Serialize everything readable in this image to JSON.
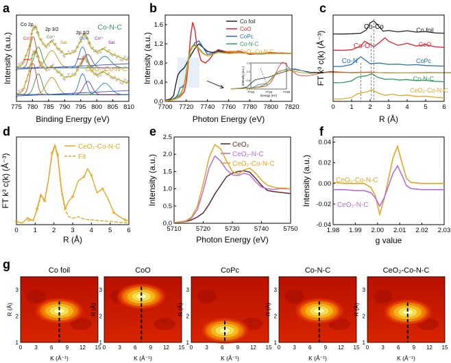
{
  "panel_letters": [
    "a",
    "b",
    "c",
    "d",
    "e",
    "f",
    "g"
  ],
  "colors": {
    "co_foil": "#222222",
    "coo": "#e0202a",
    "copc": "#1f6fb4",
    "conc": "#2e9a5b",
    "ceconc": "#e7a51e",
    "ceo2": "#5a2a2a",
    "cenc": "#b56be0",
    "fit": "#e7a51e"
  },
  "chart_data": [
    {
      "id": "a",
      "type": "line",
      "xlabel": "Binding Energy (eV)",
      "ylabel": "Intensity (a.u.)",
      "xlim": [
        775,
        810
      ],
      "xticks": [
        "775",
        "780",
        "785",
        "790",
        "795",
        "800",
        "805",
        "810"
      ],
      "labels": {
        "top": "Co-N-C",
        "bottom": "CeO₂-Co-N-C",
        "co2p": "Co 2p",
        "p32": "2p 3/2",
        "p12": "2p 1/2",
        "co3": "Co³⁺",
        "co2": "Co²⁺",
        "sat": "Sat.",
        "co3b": "Co³⁺",
        "co2b": "Co²⁺",
        "satb": "Sat."
      },
      "series": [
        {
          "name": "Co-N-C",
          "x": [
            775,
            777,
            779,
            780,
            781,
            782,
            784,
            786,
            788,
            790,
            793,
            795,
            796,
            797,
            798,
            800,
            802,
            805,
            808,
            810
          ],
          "y": [
            0.3,
            0.34,
            0.52,
            0.7,
            0.74,
            0.62,
            0.52,
            0.58,
            0.5,
            0.44,
            0.46,
            0.58,
            0.66,
            0.62,
            0.52,
            0.46,
            0.5,
            0.44,
            0.4,
            0.38
          ]
        },
        {
          "name": "CeO₂-Co-N-C",
          "x": [
            775,
            777,
            779,
            780,
            781,
            782,
            784,
            786,
            788,
            790,
            793,
            795,
            796,
            797,
            798,
            800,
            802,
            805,
            808,
            810
          ],
          "y": [
            0.02,
            0.06,
            0.26,
            0.44,
            0.48,
            0.38,
            0.28,
            0.32,
            0.26,
            0.2,
            0.22,
            0.34,
            0.42,
            0.38,
            0.28,
            0.22,
            0.26,
            0.2,
            0.16,
            0.14
          ]
        }
      ]
    },
    {
      "id": "b",
      "type": "line",
      "xlabel": "Photon Energy (eV)",
      "ylabel": "Intensity (a.u.)",
      "xlim": [
        7700,
        7820
      ],
      "ylim": [
        0,
        1.8
      ],
      "xticks": [
        "7700",
        "7720",
        "7740",
        "7760",
        "7780",
        "7800",
        "7820"
      ],
      "yticks": [
        "0.0",
        "0.4",
        "0.8",
        "1.2",
        "1.6"
      ],
      "inset": {
        "xlabel": "Energy (eV)",
        "ylabel": "Intensity (a.u.)",
        "xticks": [
          "7710",
          "7719",
          "7728"
        ],
        "yticks": [
          "0.0",
          "0.5",
          "1.0",
          "1.5"
        ]
      },
      "series": [
        {
          "name": "Co foil",
          "x": [
            7700,
            7705,
            7708,
            7710,
            7712,
            7714,
            7716,
            7718,
            7720,
            7724,
            7728,
            7732,
            7736,
            7740,
            7745,
            7750,
            7760,
            7770,
            7780,
            7790,
            7800,
            7810,
            7820
          ],
          "y": [
            0.02,
            0.05,
            0.12,
            0.35,
            0.55,
            0.62,
            0.66,
            0.7,
            0.78,
            0.95,
            1.1,
            1.2,
            1.12,
            1.04,
            1.02,
            1.06,
            1.0,
            1.02,
            1.0,
            0.99,
            1.0,
            1.01,
            1.0
          ]
        },
        {
          "name": "CoO",
          "x": [
            7700,
            7705,
            7710,
            7714,
            7718,
            7720,
            7722,
            7724,
            7726,
            7728,
            7730,
            7734,
            7738,
            7742,
            7746,
            7750,
            7760,
            7770,
            7780,
            7790,
            7800,
            7810,
            7820
          ],
          "y": [
            0.01,
            0.02,
            0.05,
            0.1,
            0.2,
            0.4,
            0.8,
            1.35,
            1.65,
            1.5,
            1.15,
            0.85,
            0.8,
            0.88,
            1.0,
            1.08,
            1.02,
            1.05,
            0.98,
            1.0,
            1.02,
            1.0,
            1.0
          ]
        },
        {
          "name": "CoPc",
          "x": [
            7700,
            7705,
            7710,
            7712,
            7714,
            7716,
            7718,
            7720,
            7722,
            7724,
            7728,
            7732,
            7736,
            7740,
            7745,
            7750,
            7760,
            7770,
            7780,
            7790,
            7800,
            7810,
            7820
          ],
          "y": [
            0.01,
            0.03,
            0.08,
            0.14,
            0.28,
            0.3,
            0.35,
            0.55,
            0.85,
            1.05,
            1.22,
            1.26,
            1.12,
            0.98,
            1.0,
            1.04,
            1.0,
            1.02,
            1.0,
            0.99,
            1.0,
            1.0,
            1.0
          ]
        },
        {
          "name": "Co-N-C",
          "x": [
            7700,
            7705,
            7710,
            7714,
            7716,
            7718,
            7720,
            7722,
            7724,
            7726,
            7728,
            7732,
            7736,
            7740,
            7745,
            7750,
            7760,
            7770,
            7780,
            7790,
            7800,
            7810,
            7820
          ],
          "y": [
            0.01,
            0.03,
            0.06,
            0.14,
            0.22,
            0.35,
            0.6,
            0.9,
            1.08,
            1.16,
            1.18,
            1.1,
            1.0,
            0.95,
            0.98,
            1.02,
            1.0,
            1.01,
            1.0,
            1.0,
            1.0,
            1.0,
            1.0
          ]
        },
        {
          "name": "CeO₂-Co-N-C",
          "x": [
            7700,
            7705,
            7710,
            7714,
            7716,
            7718,
            7720,
            7722,
            7724,
            7726,
            7728,
            7732,
            7736,
            7740,
            7745,
            7750,
            7760,
            7770,
            7780,
            7790,
            7800,
            7810,
            7820
          ],
          "y": [
            0.01,
            0.02,
            0.05,
            0.12,
            0.2,
            0.32,
            0.55,
            0.85,
            1.05,
            1.14,
            1.16,
            1.08,
            0.99,
            0.95,
            0.98,
            1.02,
            1.0,
            1.01,
            1.0,
            1.0,
            1.0,
            1.0,
            1.0
          ]
        }
      ]
    },
    {
      "id": "c",
      "type": "line",
      "xlabel": "R (Å)",
      "ylabel": "FT k³ c(k) (Å⁻³)",
      "xlim": [
        0,
        6
      ],
      "xticks": [
        "0",
        "1",
        "2",
        "3",
        "4",
        "5",
        "6"
      ],
      "annotations": {
        "coco": "Co-Co",
        "coo": "Co-O",
        "con": "Co-N"
      },
      "series": [
        {
          "name": "Co foil",
          "x": [
            0,
            0.5,
            1.0,
            1.5,
            1.8,
            2.0,
            2.2,
            2.4,
            2.7,
            3.0,
            3.5,
            4.0,
            4.5,
            5.0,
            5.5,
            6.0
          ],
          "y": [
            0.05,
            0.04,
            0.06,
            0.1,
            0.35,
            0.85,
            1.0,
            0.7,
            0.25,
            0.3,
            0.2,
            0.28,
            0.18,
            0.22,
            0.12,
            0.1
          ]
        },
        {
          "name": "CoO",
          "x": [
            0,
            0.5,
            1.0,
            1.5,
            1.7,
            1.9,
            2.2,
            2.5,
            2.8,
            3.0,
            3.5,
            4.0,
            4.5,
            5.0,
            5.5,
            6.0
          ],
          "y": [
            0.05,
            0.04,
            0.08,
            0.35,
            0.7,
            0.55,
            0.3,
            0.6,
            0.95,
            0.7,
            0.4,
            0.55,
            0.35,
            0.45,
            0.3,
            0.25
          ]
        },
        {
          "name": "CoPc",
          "x": [
            0,
            0.5,
            1.0,
            1.3,
            1.5,
            1.7,
            2.0,
            2.5,
            3.0,
            3.5,
            4.0,
            4.5,
            5.0,
            5.5,
            6.0
          ],
          "y": [
            0.05,
            0.06,
            0.2,
            0.55,
            0.75,
            0.55,
            0.25,
            0.3,
            0.2,
            0.22,
            0.15,
            0.18,
            0.12,
            0.1,
            0.08
          ]
        },
        {
          "name": "Co-N-C",
          "x": [
            0,
            0.5,
            1.0,
            1.3,
            1.5,
            1.8,
            2.1,
            2.4,
            2.8,
            3.2,
            3.6,
            4.0,
            4.5,
            5.0,
            5.5,
            6.0
          ],
          "y": [
            0.05,
            0.06,
            0.18,
            0.45,
            0.5,
            0.55,
            0.7,
            0.45,
            0.3,
            0.32,
            0.25,
            0.28,
            0.2,
            0.22,
            0.15,
            0.12
          ]
        },
        {
          "name": "CeO₂-Co-N-C",
          "x": [
            0,
            0.5,
            1.0,
            1.3,
            1.5,
            1.8,
            2.1,
            2.4,
            2.8,
            3.2,
            3.6,
            4.0,
            4.5,
            5.0,
            5.5,
            6.0
          ],
          "y": [
            0.05,
            0.06,
            0.16,
            0.42,
            0.48,
            0.56,
            0.72,
            0.5,
            0.32,
            0.4,
            0.3,
            0.34,
            0.24,
            0.26,
            0.18,
            0.14
          ]
        }
      ]
    },
    {
      "id": "d",
      "type": "line",
      "xlabel": "R (Å)",
      "ylabel": "FT k³ c(k) (Å⁻³)",
      "xlim": [
        0,
        6
      ],
      "xticks": [
        "0",
        "1",
        "2",
        "3",
        "4",
        "5",
        "6"
      ],
      "series": [
        {
          "name": "CeO₂-Co-N-C",
          "x": [
            0,
            0.3,
            0.6,
            0.9,
            1.1,
            1.3,
            1.5,
            1.7,
            1.9,
            2.05,
            2.2,
            2.4,
            2.6,
            2.8,
            3.0,
            3.3,
            3.6,
            3.8,
            4.0,
            4.3,
            4.6,
            4.9,
            5.2,
            5.5,
            5.8,
            6.0
          ],
          "y": [
            0.04,
            0.02,
            0.08,
            0.05,
            0.2,
            0.38,
            0.3,
            0.55,
            0.9,
            1.0,
            0.88,
            0.45,
            0.2,
            0.3,
            0.35,
            0.55,
            0.6,
            0.7,
            0.62,
            0.4,
            0.45,
            0.32,
            0.15,
            0.1,
            0.06,
            0.04
          ]
        },
        {
          "name": "Fit",
          "x": [
            0.6,
            0.9,
            1.1,
            1.3,
            1.5,
            1.7,
            1.9,
            2.05,
            2.2,
            2.4,
            2.6,
            2.8,
            3.0,
            3.3,
            3.6,
            4.0,
            4.5,
            5.0,
            5.5,
            6.0
          ],
          "y": [
            0.05,
            0.06,
            0.18,
            0.36,
            0.3,
            0.55,
            0.88,
            0.98,
            0.86,
            0.42,
            0.18,
            0.1,
            0.08,
            0.1,
            0.07,
            0.06,
            0.05,
            0.04,
            0.03,
            0.02
          ]
        }
      ]
    },
    {
      "id": "e",
      "type": "line",
      "xlabel": "Photon Energy (eV)",
      "ylabel": "Intensity (a.u.)",
      "xlim": [
        5710,
        5750
      ],
      "ylim": [
        0,
        2.5
      ],
      "xticks": [
        "5710",
        "5720",
        "5730",
        "5740",
        "5750"
      ],
      "yticks": [
        "0.0",
        "0.5",
        "1.0",
        "1.5",
        "2.0",
        "2.5"
      ],
      "series": [
        {
          "name": "CeO₂",
          "x": [
            5710,
            5714,
            5716,
            5718,
            5720,
            5722,
            5724,
            5726,
            5728,
            5730,
            5732,
            5734,
            5736,
            5738,
            5740,
            5742,
            5744,
            5746,
            5748,
            5750
          ],
          "y": [
            0.02,
            0.05,
            0.1,
            0.18,
            0.3,
            0.55,
            0.85,
            1.1,
            1.35,
            1.45,
            1.5,
            1.52,
            1.48,
            1.3,
            1.1,
            0.95,
            0.92,
            0.9,
            0.88,
            0.86
          ]
        },
        {
          "name": "CeO₂-N-C",
          "x": [
            5710,
            5714,
            5716,
            5718,
            5720,
            5722,
            5724,
            5726,
            5728,
            5730,
            5732,
            5734,
            5736,
            5738,
            5740,
            5742,
            5744,
            5746,
            5748,
            5750
          ],
          "y": [
            0.02,
            0.06,
            0.15,
            0.4,
            0.95,
            1.6,
            1.95,
            1.8,
            1.55,
            1.4,
            1.38,
            1.45,
            1.4,
            1.2,
            1.05,
            1.0,
            0.98,
            1.0,
            1.0,
            1.0
          ]
        },
        {
          "name": "CeO₂-Co-N-C",
          "x": [
            5710,
            5714,
            5716,
            5718,
            5720,
            5722,
            5724,
            5726,
            5728,
            5730,
            5732,
            5734,
            5736,
            5738,
            5740,
            5742,
            5744,
            5746,
            5748,
            5750
          ],
          "y": [
            0.02,
            0.07,
            0.18,
            0.5,
            1.15,
            1.9,
            2.28,
            2.15,
            1.8,
            1.5,
            1.42,
            1.55,
            1.6,
            1.45,
            1.25,
            1.1,
            1.05,
            1.02,
            1.02,
            1.0
          ]
        }
      ]
    },
    {
      "id": "f",
      "type": "line",
      "xlabel": "g value",
      "ylabel": "Intensity (a.u.)",
      "xlim": [
        1.98,
        2.03
      ],
      "ylim": [
        -0.04,
        0.045
      ],
      "xticks": [
        "1.98",
        "1.99",
        "2.00",
        "2.01",
        "2.02",
        "2.03"
      ],
      "yticks": [
        "0.04",
        "0.02",
        "0.00",
        "-0.02",
        "-0.04"
      ],
      "series": [
        {
          "name": "CeO₂-Co-N-C",
          "x": [
            1.98,
            1.985,
            1.99,
            1.994,
            1.997,
            1.999,
            2.001,
            2.003,
            2.005,
            2.007,
            2.009,
            2.011,
            2.013,
            2.015,
            2.02,
            2.025,
            2.03
          ],
          "y": [
            0.001,
            0.0,
            0.0,
            0.0,
            -0.004,
            -0.012,
            -0.03,
            -0.015,
            0.005,
            0.025,
            0.036,
            0.02,
            0.005,
            0.001,
            0.0,
            0.0,
            0.0
          ]
        },
        {
          "name": "CeO₂-N-C",
          "x": [
            1.98,
            1.985,
            1.99,
            1.994,
            1.997,
            1.999,
            2.001,
            2.003,
            2.005,
            2.007,
            2.009,
            2.011,
            2.013,
            2.015,
            2.02,
            2.025,
            2.03
          ],
          "y": [
            -0.006,
            -0.006,
            -0.007,
            -0.007,
            -0.009,
            -0.014,
            -0.022,
            -0.014,
            -0.002,
            0.01,
            0.017,
            0.008,
            -0.002,
            -0.005,
            -0.006,
            -0.006,
            -0.006
          ]
        }
      ]
    },
    {
      "id": "g",
      "type": "heatmap",
      "xlabel": "K (Å⁻¹)",
      "ylabel": "R (Å)",
      "xlim": [
        0,
        15
      ],
      "ylim": [
        1,
        3.5
      ],
      "xticks": [
        "0",
        "3",
        "6",
        "9",
        "12",
        "15"
      ],
      "yticks": [
        "1",
        "2",
        "3"
      ],
      "panels": [
        {
          "title": "Co foil",
          "peak_k": 7.5,
          "peak_r": 2.2
        },
        {
          "title": "CoO",
          "peak_k": 7.2,
          "peak_r": 2.75
        },
        {
          "title": "CoPc",
          "peak_k": 6.5,
          "peak_r": 1.45
        },
        {
          "title": "Co-N-C",
          "peak_k": 7.8,
          "peak_r": 2.2
        },
        {
          "title": "CeO₂-Co-N-C",
          "peak_k": 7.8,
          "peak_r": 2.15
        }
      ]
    }
  ]
}
